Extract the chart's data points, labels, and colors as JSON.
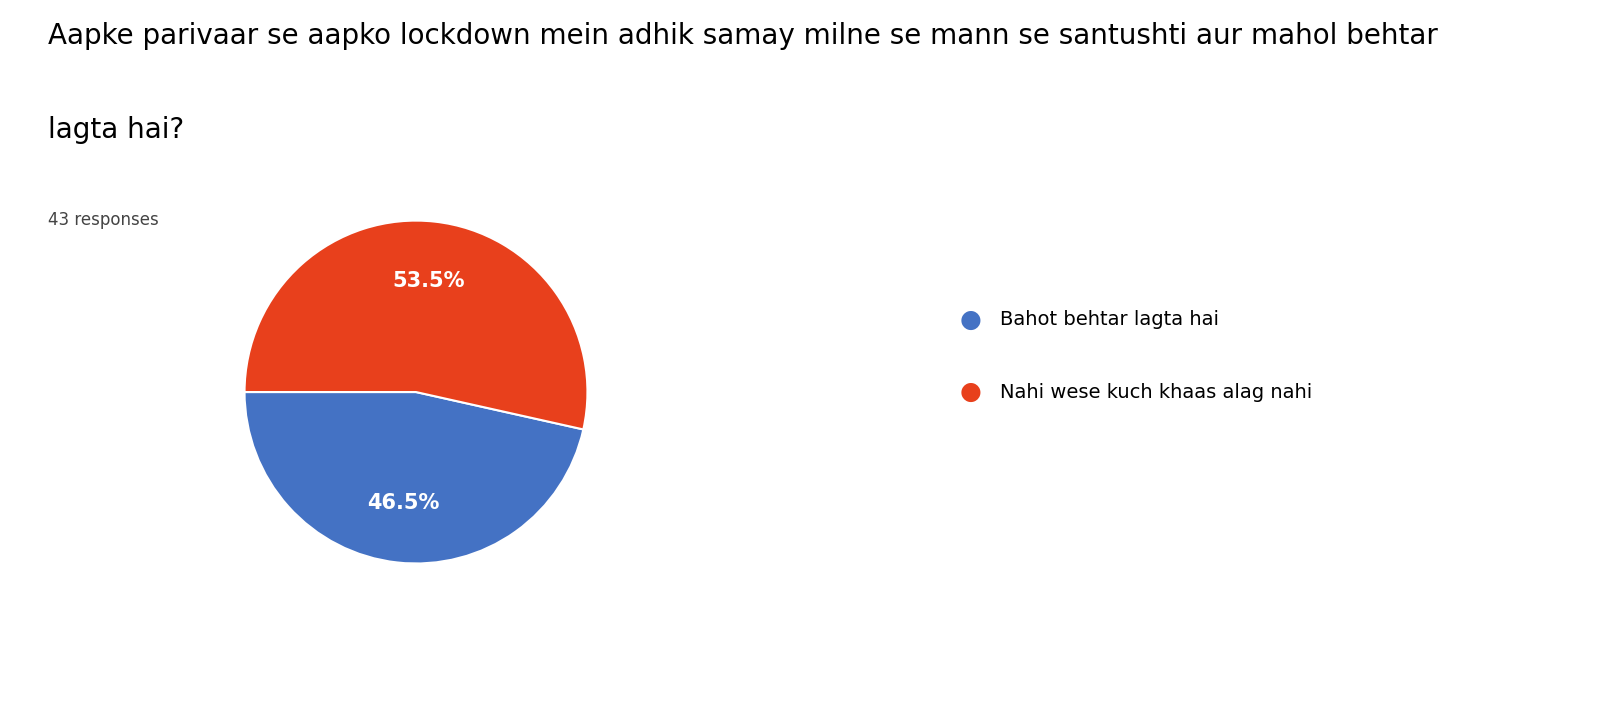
{
  "title_line1": "Aapke parivaar se aapko lockdown mein adhik samay milne se mann se santushti aur mahol behtar",
  "title_line2": "lagta hai?",
  "responses_label": "43 responses",
  "labels": [
    "Bahot behtar lagta hai",
    "Nahi wese kuch khaas alag nahi"
  ],
  "values": [
    46.5,
    53.5
  ],
  "colors": [
    "#4472c4",
    "#e8401c"
  ],
  "title_fontsize": 20,
  "responses_fontsize": 12,
  "legend_fontsize": 14,
  "autopct_fontsize": 15,
  "background_color": "#ffffff",
  "startangle": 180
}
